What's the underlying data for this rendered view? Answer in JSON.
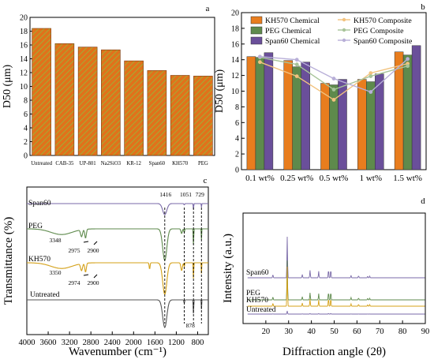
{
  "chart_data": [
    {
      "type": "bar",
      "panel_label": "a",
      "ylabel": "D50 (μm)",
      "ylim": [
        0,
        20
      ],
      "yticks": [
        0,
        2,
        4,
        6,
        8,
        10,
        12,
        14,
        16,
        18,
        20
      ],
      "categories": [
        "Untreated",
        "CAB-35",
        "UP-801",
        "Na2SiO3",
        "KR-12",
        "Span60",
        "KH570",
        "PEG"
      ],
      "values": [
        18.4,
        16.2,
        15.7,
        15.3,
        13.7,
        12.3,
        11.6,
        11.5
      ],
      "colors": {
        "fill": "#e0721b",
        "hatch": "#8ac43f",
        "edge": "#7a3a10"
      }
    },
    {
      "type": "bar",
      "panel_label": "b",
      "ylabel": "D50 (μm)",
      "ylim": [
        0,
        20
      ],
      "yticks": [
        0,
        2,
        4,
        6,
        8,
        10,
        12,
        14,
        16,
        18,
        20
      ],
      "categories": [
        "0.1 wt%",
        "0.25 wt%",
        "0.5 wt%",
        "1 wt%",
        "1.5 wt%"
      ],
      "series": [
        {
          "name": "KH570 Chemical",
          "kind": "bar",
          "color": "#e87d1e",
          "values": [
            14.4,
            13.9,
            11.0,
            11.5,
            15.0
          ]
        },
        {
          "name": "PEG Chemical",
          "kind": "bar",
          "color": "#5e8a4c",
          "values": [
            14.3,
            13.1,
            10.8,
            11.2,
            14.6
          ]
        },
        {
          "name": "Span60 Chemical",
          "kind": "bar",
          "color": "#6a4f9a",
          "values": [
            14.9,
            13.7,
            11.5,
            12.2,
            15.8
          ]
        },
        {
          "name": "KH570 Composite",
          "kind": "line",
          "color": "#f2c27e",
          "values": [
            13.7,
            11.9,
            8.9,
            12.3,
            13.5
          ]
        },
        {
          "name": "PEG Composite",
          "kind": "line",
          "color": "#a8c49a",
          "values": [
            14.3,
            13.4,
            10.2,
            11.9,
            13.2
          ]
        },
        {
          "name": "Span60 Composite",
          "kind": "line",
          "color": "#b8afd8",
          "values": [
            14.4,
            14.0,
            11.6,
            9.9,
            14.1
          ]
        }
      ]
    },
    {
      "type": "line",
      "panel_label": "c",
      "xlabel": "Wavenumber (cm⁻¹)",
      "ylabel": "Transmittance (%)",
      "xlim": [
        4000,
        600
      ],
      "xticks": [
        4000,
        3600,
        3200,
        2800,
        2400,
        2000,
        1600,
        1200,
        800
      ],
      "series": [
        {
          "name": "Span60",
          "color": "#7a6aa8"
        },
        {
          "name": "PEG",
          "color": "#5e8a4c"
        },
        {
          "name": "KH570",
          "color": "#d4a017"
        },
        {
          "name": "Untreated",
          "color": "#555555"
        }
      ],
      "peaks": [
        "1416",
        "1051",
        "729",
        "3348",
        "2975",
        "2900",
        "3350",
        "2974",
        "2900",
        "878"
      ],
      "reference_lines": [
        1416,
        1051,
        878,
        729
      ]
    },
    {
      "type": "line",
      "panel_label": "d",
      "xlabel": "Diffraction angle (2θ)",
      "ylabel": "Intensity (a.u.)",
      "xlim": [
        10,
        90
      ],
      "xticks": [
        20,
        30,
        40,
        50,
        60,
        70,
        80,
        90
      ],
      "peak_positions": [
        23.1,
        29.4,
        36.0,
        39.4,
        43.2,
        47.5,
        48.5,
        57.4,
        60.7,
        64.7,
        65.6
      ],
      "peak_heights": [
        0.08,
        1.0,
        0.08,
        0.18,
        0.16,
        0.2,
        0.2,
        0.06,
        0.05,
        0.04,
        0.04
      ],
      "series": [
        {
          "name": "Span60",
          "color": "#7a6aa8"
        },
        {
          "name": "PEG",
          "color": "#5e8a4c"
        },
        {
          "name": "KH570",
          "color": "#d4a017"
        },
        {
          "name": "Untreated",
          "color": "#7a6aa8"
        }
      ]
    }
  ]
}
